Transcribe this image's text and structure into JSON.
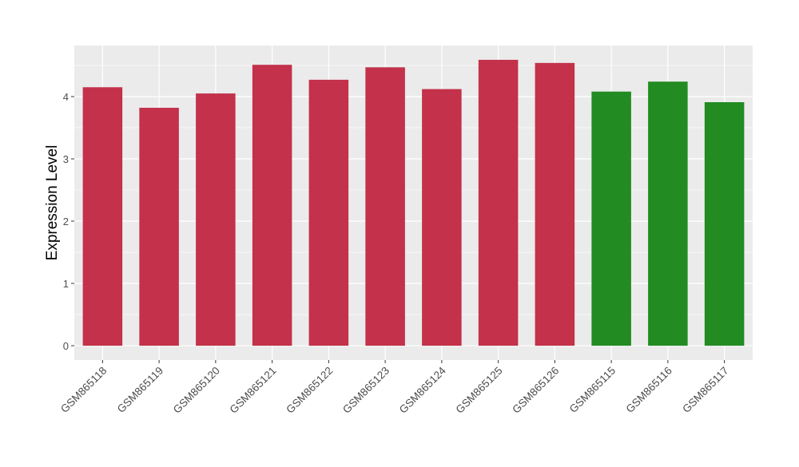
{
  "chart_data": {
    "type": "bar",
    "title": "",
    "xlabel": "",
    "ylabel": "Expression Level",
    "ylim": [
      -0.23,
      4.82
    ],
    "yticks": [
      0,
      1,
      2,
      3,
      4
    ],
    "grid": true,
    "legend": "none",
    "categories": [
      "GSM865118",
      "GSM865119",
      "GSM865120",
      "GSM865121",
      "GSM865122",
      "GSM865123",
      "GSM865124",
      "GSM865125",
      "GSM865126",
      "GSM865115",
      "GSM865116",
      "GSM865117"
    ],
    "values": [
      4.15,
      3.82,
      4.05,
      4.51,
      4.27,
      4.47,
      4.12,
      4.59,
      4.54,
      4.08,
      4.24,
      3.91
    ],
    "colors": [
      "#c3314a",
      "#c3314a",
      "#c3314a",
      "#c3314a",
      "#c3314a",
      "#c3314a",
      "#c3314a",
      "#c3314a",
      "#c3314a",
      "#228b22",
      "#228b22",
      "#228b22"
    ],
    "panel_background": "#ebebeb"
  }
}
